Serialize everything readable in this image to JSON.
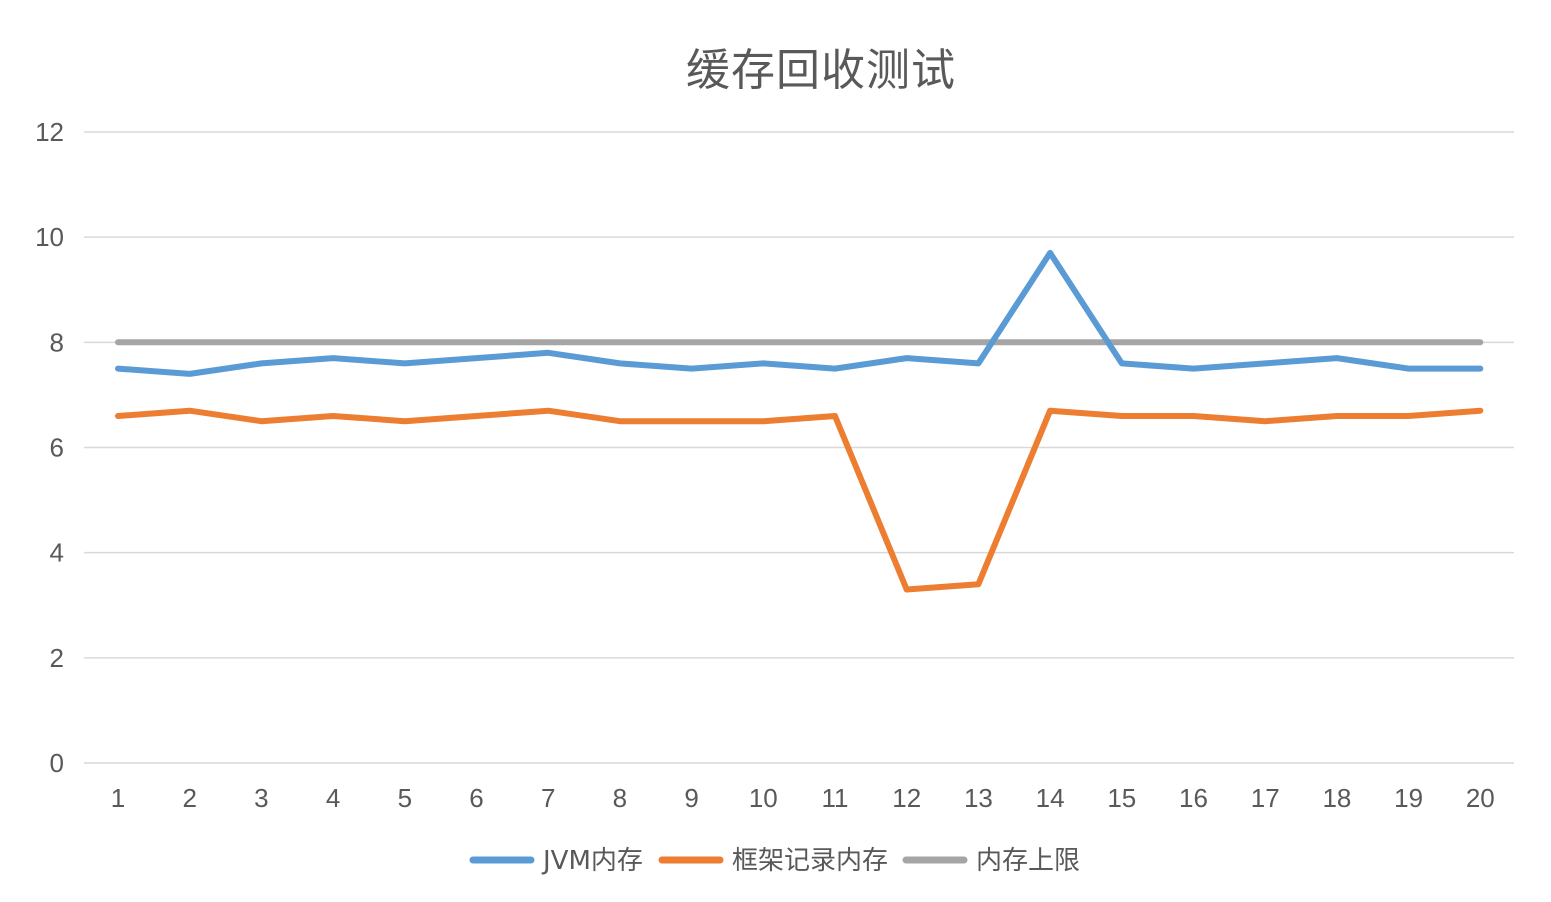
{
  "chart_data": {
    "type": "line",
    "title": "缓存回收测试",
    "xlabel": "",
    "ylabel": "",
    "categories": [
      "1",
      "2",
      "3",
      "4",
      "5",
      "6",
      "7",
      "8",
      "9",
      "10",
      "11",
      "12",
      "13",
      "14",
      "15",
      "16",
      "17",
      "18",
      "19",
      "20"
    ],
    "ylim": [
      0,
      12
    ],
    "yticks": [
      0,
      2,
      4,
      6,
      8,
      10,
      12
    ],
    "grid": true,
    "legend_position": "bottom",
    "series": [
      {
        "name": "JVM内存",
        "color": "#5b9bd5",
        "values": [
          7.5,
          7.4,
          7.6,
          7.7,
          7.6,
          7.7,
          7.8,
          7.6,
          7.5,
          7.6,
          7.5,
          7.7,
          7.6,
          9.7,
          7.6,
          7.5,
          7.6,
          7.7,
          7.5,
          7.5
        ]
      },
      {
        "name": "框架记录内存",
        "color": "#ed7d31",
        "values": [
          6.6,
          6.7,
          6.5,
          6.6,
          6.5,
          6.6,
          6.7,
          6.5,
          6.5,
          6.5,
          6.6,
          3.3,
          3.4,
          6.7,
          6.6,
          6.6,
          6.5,
          6.6,
          6.6,
          6.7
        ]
      },
      {
        "name": "内存上限",
        "color": "#a5a5a5",
        "values": [
          8,
          8,
          8,
          8,
          8,
          8,
          8,
          8,
          8,
          8,
          8,
          8,
          8,
          8,
          8,
          8,
          8,
          8,
          8,
          8
        ]
      }
    ]
  }
}
